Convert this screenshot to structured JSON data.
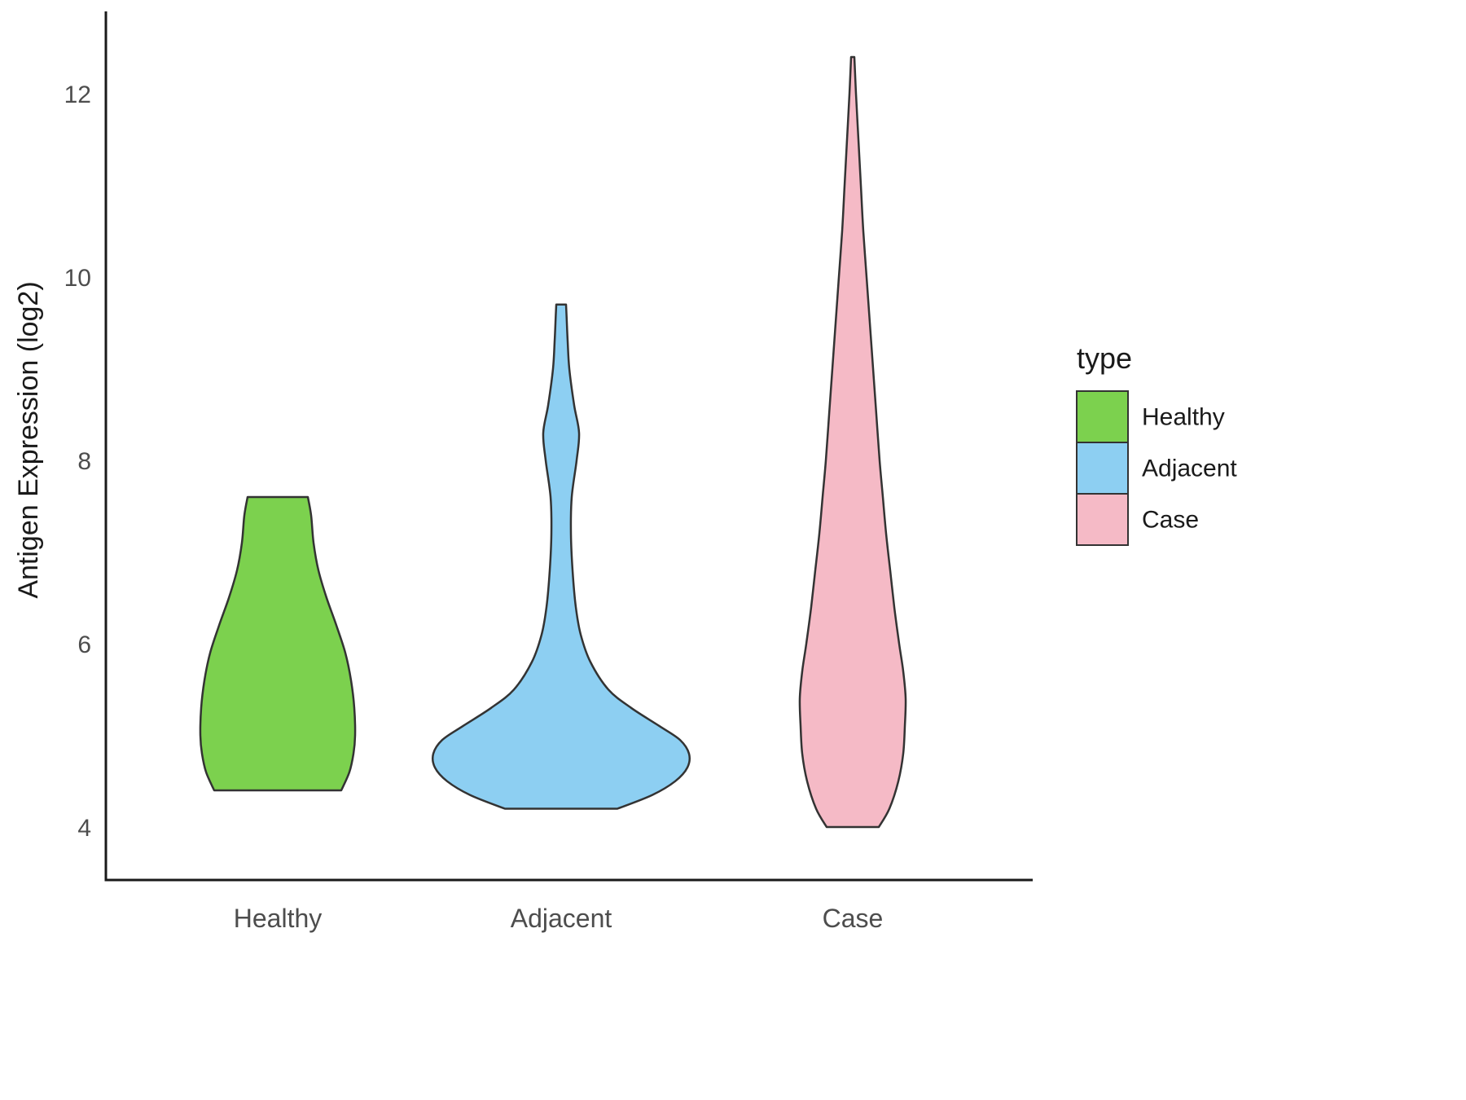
{
  "chart_data": {
    "type": "violin",
    "title": "",
    "xlabel": "",
    "ylabel": "Antigen Expression (log2)",
    "ylim": [
      3.4,
      12.9
    ],
    "yticks": [
      4,
      6,
      8,
      10,
      12
    ],
    "categories": [
      "Healthy",
      "Adjacent",
      "Case"
    ],
    "grid": false,
    "axis_text_color": "#4d4d4d",
    "axis_line_color": "#1a1a1a",
    "outline_color": "#333333",
    "legend": {
      "title": "type",
      "position": "right",
      "items": [
        {
          "label": "Healthy",
          "color": "#7CD14E"
        },
        {
          "label": "Adjacent",
          "color": "#8DCFF2"
        },
        {
          "label": "Case",
          "color": "#F5BAC6"
        }
      ]
    },
    "series": [
      {
        "name": "Healthy",
        "color": "#7CD14E",
        "y_range": [
          4.4,
          7.6
        ],
        "profile": [
          [
            4.4,
            78
          ],
          [
            4.6,
            88
          ],
          [
            4.8,
            93
          ],
          [
            5.0,
            95
          ],
          [
            5.3,
            94
          ],
          [
            5.6,
            90
          ],
          [
            5.9,
            83
          ],
          [
            6.2,
            72
          ],
          [
            6.5,
            60
          ],
          [
            6.8,
            50
          ],
          [
            7.1,
            44
          ],
          [
            7.4,
            41
          ],
          [
            7.6,
            37
          ]
        ]
      },
      {
        "name": "Adjacent",
        "color": "#8DCFF2",
        "y_range": [
          4.2,
          9.7
        ],
        "profile": [
          [
            4.2,
            69
          ],
          [
            4.35,
            112
          ],
          [
            4.5,
            140
          ],
          [
            4.65,
            155
          ],
          [
            4.8,
            157
          ],
          [
            4.95,
            146
          ],
          [
            5.1,
            121
          ],
          [
            5.3,
            86
          ],
          [
            5.5,
            58
          ],
          [
            5.8,
            36
          ],
          [
            6.1,
            24
          ],
          [
            6.4,
            18
          ],
          [
            6.8,
            14
          ],
          [
            7.2,
            12
          ],
          [
            7.6,
            13
          ],
          [
            8.0,
            19
          ],
          [
            8.3,
            22
          ],
          [
            8.6,
            16
          ],
          [
            9.0,
            10
          ],
          [
            9.3,
            8
          ],
          [
            9.5,
            7
          ],
          [
            9.7,
            6
          ]
        ]
      },
      {
        "name": "Case",
        "color": "#F5BAC6",
        "y_range": [
          4.0,
          12.4
        ],
        "profile": [
          [
            4.0,
            32
          ],
          [
            4.2,
            45
          ],
          [
            4.5,
            56
          ],
          [
            4.8,
            62
          ],
          [
            5.1,
            64
          ],
          [
            5.4,
            65
          ],
          [
            5.7,
            62
          ],
          [
            6.0,
            57
          ],
          [
            6.4,
            51
          ],
          [
            6.8,
            46
          ],
          [
            7.2,
            41
          ],
          [
            7.6,
            37
          ],
          [
            8.0,
            33
          ],
          [
            8.5,
            29
          ],
          [
            9.0,
            25
          ],
          [
            9.5,
            21
          ],
          [
            10.0,
            17
          ],
          [
            10.5,
            13
          ],
          [
            11.0,
            10
          ],
          [
            11.5,
            7
          ],
          [
            12.0,
            4
          ],
          [
            12.4,
            2
          ]
        ]
      }
    ]
  }
}
